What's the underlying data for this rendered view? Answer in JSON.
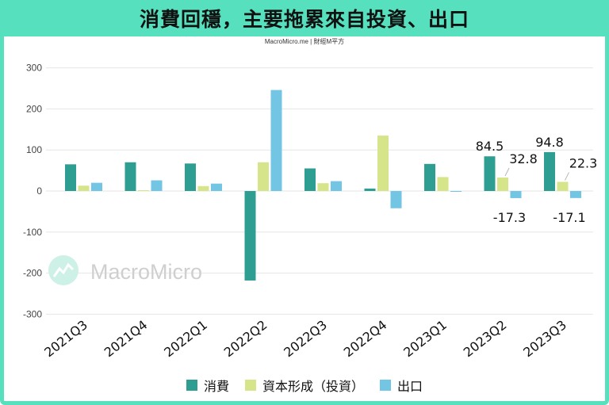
{
  "header": {
    "title": "消費回穩，主要拖累來自投資、出口",
    "source": "MacroMicro.me | 財經M平方"
  },
  "watermark": {
    "text": "MacroMicro",
    "icon": "macromicro-logo-icon"
  },
  "colors": {
    "accent": "#56e0be",
    "grid": "#e6e6e6",
    "tick": "#444444"
  },
  "chart_data": {
    "type": "bar",
    "categories": [
      "2021Q3",
      "2021Q4",
      "2022Q1",
      "2022Q2",
      "2022Q3",
      "2022Q4",
      "2023Q1",
      "2023Q2",
      "2023Q3"
    ],
    "series": [
      {
        "name": "消費",
        "color": "#2e9d92",
        "values": [
          65,
          70,
          67,
          -218,
          55,
          6,
          66,
          84.5,
          94.8
        ]
      },
      {
        "name": "資本形成（投資）",
        "color": "#d6e58a",
        "values": [
          13,
          2,
          12,
          70,
          19,
          135,
          34,
          32.8,
          22.3
        ]
      },
      {
        "name": "出口",
        "color": "#72c6e4",
        "values": [
          20,
          26,
          18,
          246,
          24,
          -42,
          -1,
          -17.3,
          -17.1
        ]
      }
    ],
    "yticks": [
      300,
      200,
      100,
      0,
      -100,
      -200,
      -300
    ],
    "ylim": [
      -320,
      320
    ],
    "data_labels": [
      {
        "text": "84.5",
        "category": "2023Q2",
        "series": 0
      },
      {
        "text": "32.8",
        "category": "2023Q2",
        "series": 1
      },
      {
        "text": "-17.3",
        "category": "2023Q2",
        "series": 2
      },
      {
        "text": "94.8",
        "category": "2023Q3",
        "series": 0
      },
      {
        "text": "22.3",
        "category": "2023Q3",
        "series": 1
      },
      {
        "text": "-17.1",
        "category": "2023Q3",
        "series": 2
      }
    ],
    "grid": true,
    "legend": "bottom-center"
  }
}
